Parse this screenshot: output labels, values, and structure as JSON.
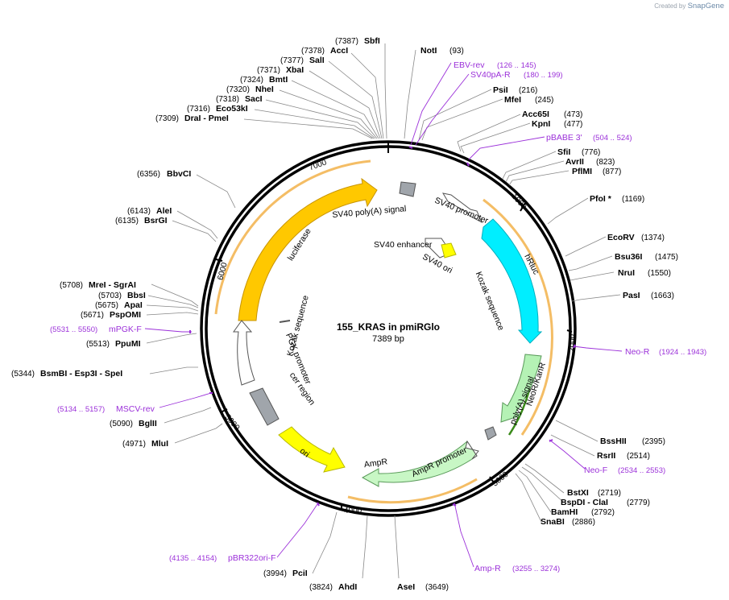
{
  "credit": {
    "prefix": "Created by",
    "brand": "SnapGene"
  },
  "plasmid": {
    "name": "155_KRAS in pmiRGlo",
    "size": "7389 bp"
  },
  "ticks": [
    "1000",
    "2000",
    "3000",
    "4000",
    "5000",
    "6000",
    "7000"
  ],
  "colors": {
    "primer": "#9b30d9",
    "luciferase": "#ffc800",
    "hRluc": "#00eeff",
    "neo": "#b5f2b5",
    "amp": "#c8f7c5",
    "ori": "#ffff00",
    "arc": "#f2b24a",
    "backbone": "#000000",
    "gray": "#a0a5ab"
  },
  "enzymes_right": [
    {
      "name": "NotI",
      "pos": "(93)"
    },
    {
      "name": "PsiI",
      "pos": "(216)"
    },
    {
      "name": "MfeI",
      "pos": "(245)"
    },
    {
      "name": "Acc65I",
      "pos": "(473)"
    },
    {
      "name": "KpnI",
      "pos": "(477)"
    },
    {
      "name": "SfiI",
      "pos": "(776)"
    },
    {
      "name": "AvrII",
      "pos": "(823)"
    },
    {
      "name": "PflMI",
      "pos": "(877)"
    },
    {
      "name": "PfoI *",
      "pos": "(1169)"
    },
    {
      "name": "EcoRV",
      "pos": "(1374)"
    },
    {
      "name": "Bsu36I",
      "pos": "(1475)"
    },
    {
      "name": "NruI",
      "pos": "(1550)"
    },
    {
      "name": "PasI",
      "pos": "(1663)"
    },
    {
      "name": "BssHII",
      "pos": "(2395)"
    },
    {
      "name": "RsrII",
      "pos": "(2514)"
    },
    {
      "name": "BstXI",
      "pos": "(2719)"
    },
    {
      "name": "BspDI - ClaI",
      "pos": "(2779)"
    },
    {
      "name": "BamHI",
      "pos": "(2792)"
    },
    {
      "name": "SnaBI",
      "pos": "(2886)"
    },
    {
      "name": "AseI",
      "pos": "(3649)"
    }
  ],
  "enzymes_left": [
    {
      "name": "SbfI",
      "pos": "(7387)"
    },
    {
      "name": "AccI",
      "pos": "(7378)"
    },
    {
      "name": "SalI",
      "pos": "(7377)"
    },
    {
      "name": "XbaI",
      "pos": "(7371)"
    },
    {
      "name": "BmtI",
      "pos": "(7324)"
    },
    {
      "name": "NheI",
      "pos": "(7320)"
    },
    {
      "name": "SacI",
      "pos": "(7318)"
    },
    {
      "name": "Eco53kI",
      "pos": "(7316)"
    },
    {
      "name": "DraI - PmeI",
      "pos": "(7309)"
    },
    {
      "name": "BbvCI",
      "pos": "(6356)"
    },
    {
      "name": "AleI",
      "pos": "(6143)"
    },
    {
      "name": "BsrGI",
      "pos": "(6135)"
    },
    {
      "name": "MreI - SgrAI",
      "pos": "(5708)"
    },
    {
      "name": "BbsI",
      "pos": "(5703)"
    },
    {
      "name": "ApaI",
      "pos": "(5675)"
    },
    {
      "name": "PspOMI",
      "pos": "(5671)"
    },
    {
      "name": "PpuMI",
      "pos": "(5513)"
    },
    {
      "name": "BsmBI - Esp3I - SpeI",
      "pos": "(5344)"
    },
    {
      "name": "BglII",
      "pos": "(5090)"
    },
    {
      "name": "MluI",
      "pos": "(4971)"
    },
    {
      "name": "PciI",
      "pos": "(3994)"
    },
    {
      "name": "AhdI",
      "pos": "(3824)"
    }
  ],
  "primers": [
    {
      "name": "EBV-rev",
      "pos": "(126 .. 145)"
    },
    {
      "name": "SV40pA-R",
      "pos": "(180 .. 199)"
    },
    {
      "name": "pBABE 3'",
      "pos": "(504 .. 524)"
    },
    {
      "name": "Neo-R",
      "pos": "(1924 .. 1943)"
    },
    {
      "name": "Neo-F",
      "pos": "(2534 .. 2553)"
    },
    {
      "name": "Amp-R",
      "pos": "(3255 .. 3274)"
    },
    {
      "name": "pBR322ori-F",
      "pos": "(4135 .. 4154)"
    },
    {
      "name": "MSCV-rev",
      "pos": "(5134 .. 5157)"
    },
    {
      "name": "mPGK-F",
      "pos": "(5531 .. 5550)"
    }
  ],
  "features": {
    "sv40_polya": "SV40 poly(A) signal",
    "sv40_promoter": "SV40 promoter",
    "sv40_enhancer": "SV40 enhancer",
    "sv40_ori": "SV40 ori",
    "kozak_right": "Kozak sequence",
    "kozak_left": "Kozak sequence",
    "luciferase": "luciferase",
    "hRluc": "hRluc",
    "neokan": "NeoR/KanR",
    "polya": "poly(A) signal",
    "ampr": "AmpR",
    "ampr_promoter": "AmpR promoter",
    "ori": "ori",
    "cer": "cer region",
    "pgk": "PGK promoter"
  }
}
